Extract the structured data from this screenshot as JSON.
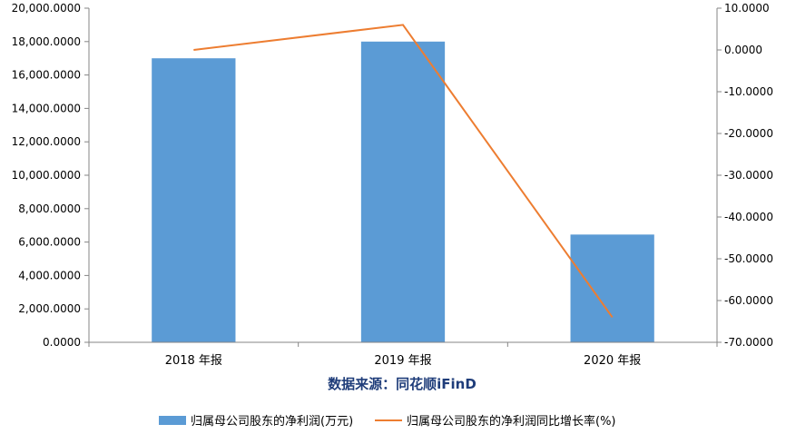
{
  "chart_data": {
    "type": "bar",
    "categories": [
      "2018 年报",
      "2019 年报",
      "2020 年报"
    ],
    "series": [
      {
        "name": "归属母公司股东的净利润(万元)",
        "type": "bar",
        "axis": "left",
        "color": "#5b9bd5",
        "values": [
          17000,
          18000,
          6450
        ]
      },
      {
        "name": "归属母公司股东的净利润同比增长率(%)",
        "type": "line",
        "axis": "right",
        "color": "#ed7d31",
        "values": [
          0.0,
          6.0,
          -64.0
        ]
      }
    ],
    "left_axis": {
      "ylim": [
        0,
        20000
      ],
      "ticks": [
        "20,000.0000",
        "18,000.0000",
        "16,000.0000",
        "14,000.0000",
        "12,000.0000",
        "10,000.0000",
        "8,000.0000",
        "6,000.0000",
        "4,000.0000",
        "2,000.0000",
        "0.0000"
      ],
      "tick_values": [
        20000,
        18000,
        16000,
        14000,
        12000,
        10000,
        8000,
        6000,
        4000,
        2000,
        0
      ]
    },
    "right_axis": {
      "ylim": [
        -70,
        10
      ],
      "ticks": [
        "10.0000",
        "0.0000",
        "-10.0000",
        "-20.0000",
        "-30.0000",
        "-40.0000",
        "-50.0000",
        "-60.0000",
        "-70.0000"
      ],
      "tick_values": [
        10,
        0,
        -10,
        -20,
        -30,
        -40,
        -50,
        -60,
        -70
      ]
    },
    "grid": false,
    "legend_position": "bottom",
    "annotation": "数据来源：同花顺iFinD",
    "title": "",
    "xlabel": "",
    "ylabel": ""
  }
}
